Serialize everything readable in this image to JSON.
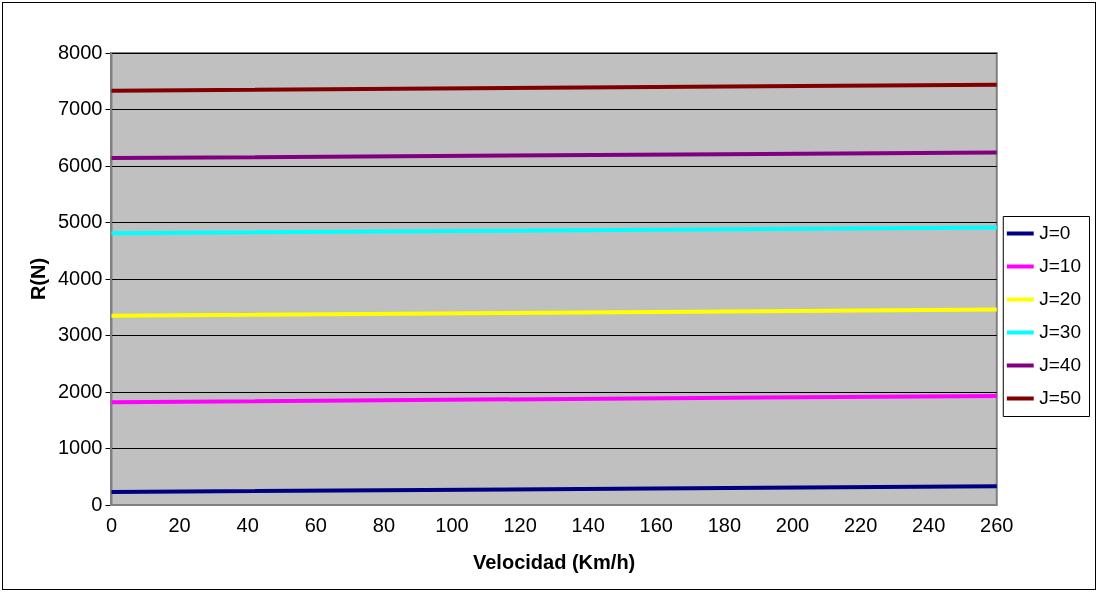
{
  "chart_data": {
    "type": "line",
    "xlabel": "Velocidad (Km/h)",
    "ylabel": "R(N)",
    "x": [
      0,
      260
    ],
    "series": [
      {
        "name": "J=0",
        "color": "#000080",
        "values": [
          230,
          330
        ]
      },
      {
        "name": "J=10",
        "color": "#ff00ff",
        "values": [
          1820,
          1930
        ]
      },
      {
        "name": "J=20",
        "color": "#ffff00",
        "values": [
          3350,
          3460
        ]
      },
      {
        "name": "J=30",
        "color": "#00ffff",
        "values": [
          4810,
          4910
        ]
      },
      {
        "name": "J=40",
        "color": "#800080",
        "values": [
          6140,
          6240
        ]
      },
      {
        "name": "J=50",
        "color": "#800000",
        "values": [
          7330,
          7440
        ]
      }
    ],
    "xlim": [
      0,
      260
    ],
    "xticks": [
      0,
      20,
      40,
      60,
      80,
      100,
      120,
      140,
      160,
      180,
      200,
      220,
      240,
      260
    ],
    "ylim": [
      0,
      8000
    ],
    "yticks": [
      0,
      1000,
      2000,
      3000,
      4000,
      5000,
      6000,
      7000,
      8000
    ],
    "grid": "y",
    "legend": "right",
    "marker": "none",
    "line_style": "solid"
  }
}
